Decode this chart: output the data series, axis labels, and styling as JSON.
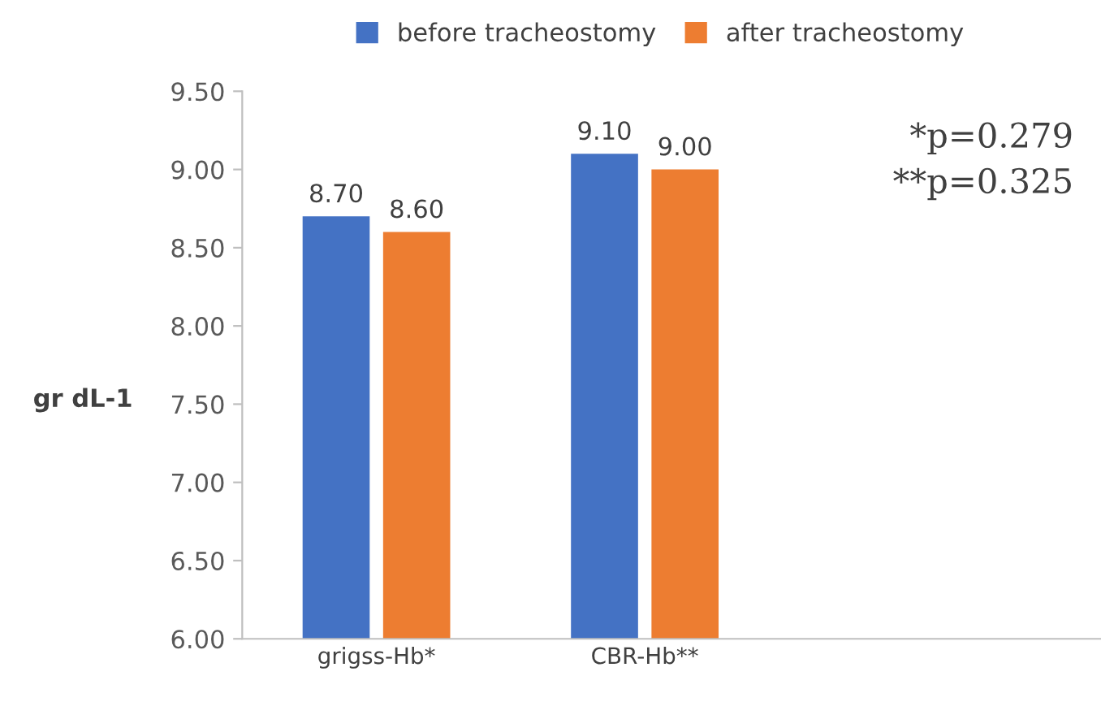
{
  "chart_data": {
    "type": "bar",
    "categories": [
      "grigss-Hb*",
      "CBR-Hb**"
    ],
    "series": [
      {
        "name": "before tracheostomy",
        "color": "#4472c4",
        "values": [
          8.7,
          9.1
        ],
        "value_labels": [
          "8.70",
          "9.10"
        ]
      },
      {
        "name": "after tracheostomy",
        "color": "#ed7d31",
        "values": [
          8.6,
          9.0
        ],
        "value_labels": [
          "8.60",
          "9.00"
        ]
      }
    ],
    "ylabel": "gr dL-1",
    "ylim": [
      6,
      9.5
    ],
    "yticks": [
      {
        "value": 6,
        "label": "6.00"
      },
      {
        "value": 6.5,
        "label": "6.50"
      },
      {
        "value": 7,
        "label": "7.00"
      },
      {
        "value": 7.5,
        "label": "7.50"
      },
      {
        "value": 8,
        "label": "8.00"
      },
      {
        "value": 8.5,
        "label": "8.50"
      },
      {
        "value": 9,
        "label": "9.00"
      },
      {
        "value": 9.5,
        "label": "9.50"
      }
    ],
    "annotations": [
      "*p=0.279",
      "**p=0.325"
    ],
    "legend": "top",
    "grid": false
  }
}
